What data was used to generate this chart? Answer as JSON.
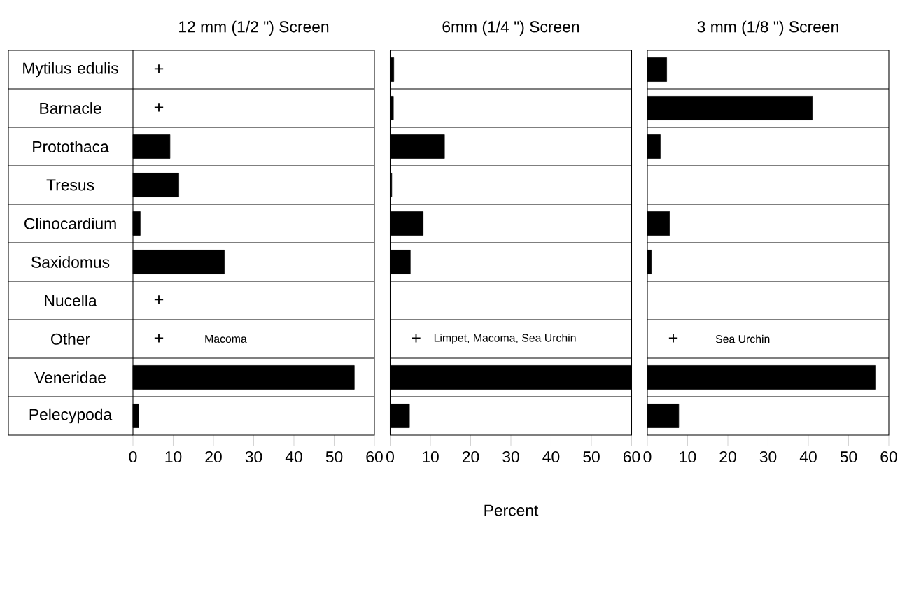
{
  "chart_data": [
    {
      "type": "bar",
      "orientation": "horizontal",
      "title": "12 mm (1/2 \") Screen",
      "color": "#000000",
      "categories": [
        "Mytilus edulis",
        "Barnacle",
        "Protothaca",
        "Tresus",
        "Clinocardium",
        "Saxidomus",
        "Nucella",
        "Other",
        "Veneridae",
        "Pelecypoda"
      ],
      "values": [
        null,
        null,
        9.2,
        11.4,
        1.8,
        22.7,
        null,
        null,
        55,
        1.4
      ],
      "value_labels": [
        "+",
        "+",
        null,
        null,
        null,
        null,
        "+",
        "+",
        null,
        null
      ],
      "xlim": [
        0,
        60
      ],
      "xticks": [
        0,
        10,
        20,
        30,
        40,
        50,
        60
      ],
      "annotations": [
        "Macoma"
      ]
    },
    {
      "type": "bar",
      "orientation": "horizontal",
      "title": "6mm (1/4 \") Screen",
      "xlabel": "Percent",
      "color": "#000000",
      "categories": [
        null,
        null,
        null,
        null,
        null,
        null,
        null,
        null,
        null,
        null
      ],
      "values": [
        0.9,
        0.8,
        13.5,
        0.4,
        8.2,
        5,
        null,
        null,
        60,
        4.8
      ],
      "value_labels": [
        null,
        null,
        null,
        null,
        null,
        null,
        null,
        "+",
        null,
        null
      ],
      "xlim": [
        0,
        60
      ],
      "xticks": [
        0,
        10,
        20,
        30,
        40,
        50,
        60
      ],
      "annotations": [
        "Limpet, Macoma, Sea Urchin"
      ]
    },
    {
      "type": "bar",
      "orientation": "horizontal",
      "title": "3 mm (1/8 \") Screen",
      "color": "#000000",
      "categories": [
        null,
        null,
        null,
        null,
        null,
        null,
        null,
        null,
        null,
        null
      ],
      "values": [
        4.8,
        41,
        3.2,
        null,
        5.5,
        1,
        null,
        null,
        56.6,
        7.8
      ],
      "value_labels": [
        null,
        null,
        null,
        null,
        null,
        null,
        null,
        "+",
        null,
        null
      ],
      "xlim": [
        0,
        60
      ],
      "xticks": [
        0,
        10,
        20,
        30,
        40,
        50,
        60
      ],
      "annotations": [
        "Sea Urchin"
      ]
    }
  ]
}
